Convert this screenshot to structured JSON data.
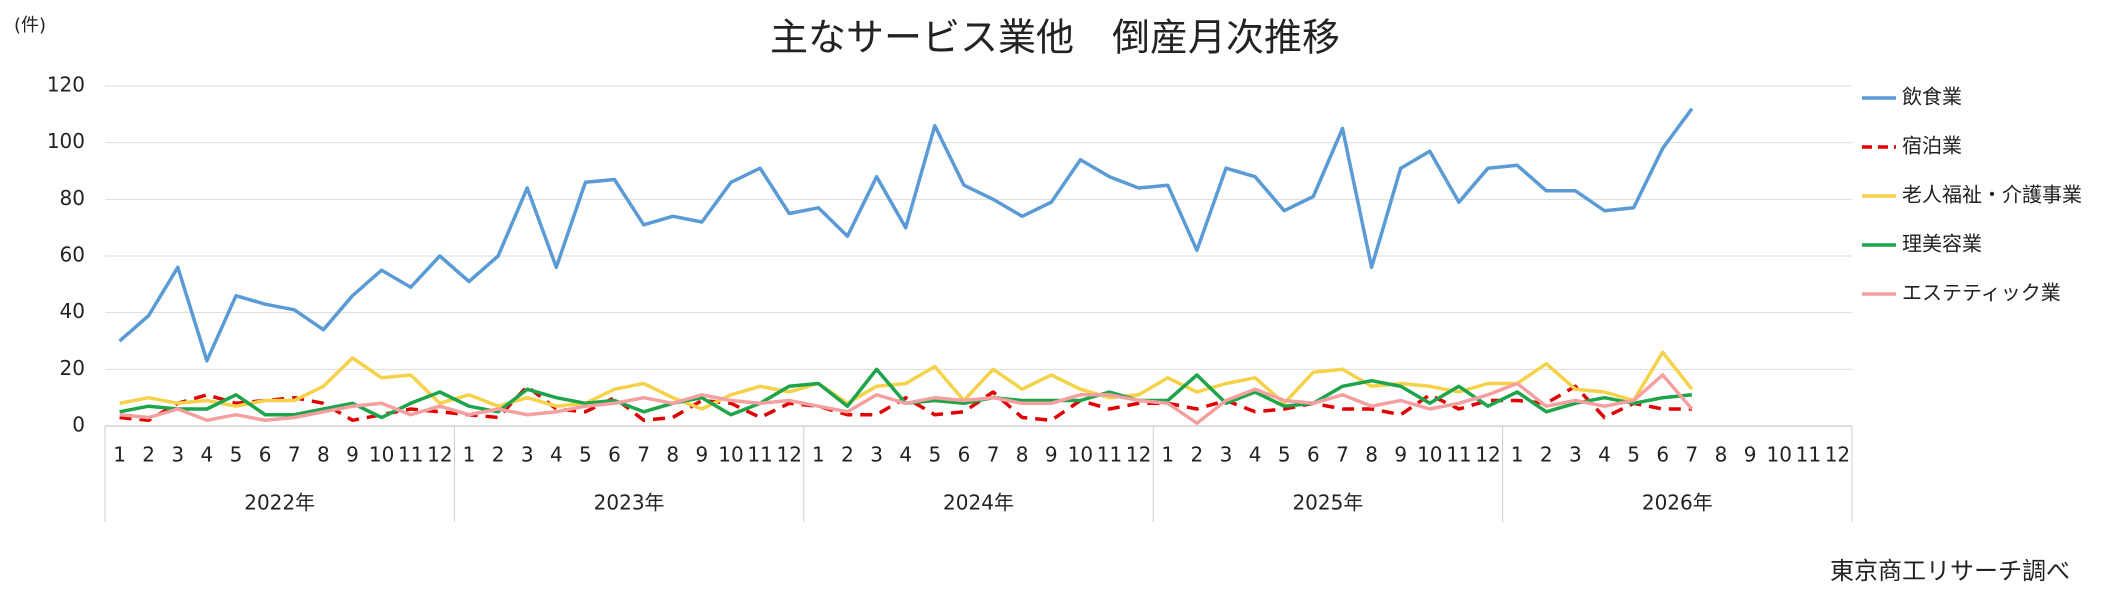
{
  "chart_data": {
    "type": "line",
    "title": "主なサービス業他　倒産月次推移",
    "unit_label": "(件)",
    "source": "東京商工リサーチ調べ",
    "categories": [
      "1",
      "2",
      "3",
      "4",
      "5",
      "6",
      "7",
      "8",
      "9",
      "10",
      "11",
      "12",
      "1",
      "2",
      "3",
      "4",
      "5",
      "6",
      "7",
      "8",
      "9",
      "10",
      "11",
      "12",
      "1",
      "2",
      "3",
      "4",
      "5",
      "6",
      "7",
      "8",
      "9",
      "10",
      "11",
      "12",
      "1",
      "2",
      "3",
      "4",
      "5",
      "6",
      "7",
      "8",
      "9",
      "10",
      "11",
      "12",
      "1",
      "2",
      "3",
      "4",
      "5",
      "6",
      "7",
      "8",
      "9",
      "10",
      "11",
      "12"
    ],
    "years": [
      "2022年",
      "2023年",
      "2024年",
      "2025年",
      "2026年"
    ],
    "ylim": [
      0,
      120
    ],
    "yticks": [
      0,
      20,
      40,
      60,
      80,
      100,
      120
    ],
    "grid": true,
    "series": [
      {
        "name": "飲食業",
        "color": "#5b9bd5",
        "dashed": false,
        "values": [
          30,
          39,
          56,
          23,
          46,
          43,
          41,
          34,
          46,
          55,
          49,
          60,
          51,
          60,
          84,
          56,
          86,
          87,
          71,
          74,
          72,
          86,
          91,
          75,
          77,
          67,
          88,
          70,
          106,
          85,
          80,
          74,
          79,
          94,
          88,
          84,
          85,
          62,
          91,
          88,
          76,
          81,
          105,
          56,
          91,
          97,
          79,
          91,
          92,
          83,
          83,
          76,
          77,
          98,
          112,
          null,
          null,
          null,
          null,
          null
        ]
      },
      {
        "name": "宿泊業",
        "color": "#e00000",
        "dashed": true,
        "values": [
          3,
          2,
          8,
          11,
          8,
          9,
          10,
          8,
          2,
          4,
          6,
          5,
          4,
          3,
          14,
          6,
          5,
          10,
          2,
          3,
          9,
          8,
          3,
          8,
          7,
          4,
          4,
          10,
          4,
          5,
          12,
          3,
          2,
          9,
          6,
          8,
          8,
          6,
          9,
          5,
          6,
          8,
          6,
          6,
          4,
          11,
          6,
          9,
          9,
          8,
          14,
          3,
          8,
          6,
          6,
          null,
          null,
          null,
          null,
          null
        ]
      },
      {
        "name": "老人福祉・介護事業",
        "color": "#f5d24a",
        "dashed": false,
        "values": [
          8,
          10,
          8,
          9,
          7,
          9,
          9,
          14,
          24,
          17,
          18,
          8,
          11,
          7,
          10,
          7,
          8,
          13,
          15,
          10,
          6,
          11,
          14,
          12,
          15,
          8,
          14,
          15,
          21,
          9,
          20,
          13,
          18,
          13,
          10,
          11,
          17,
          12,
          15,
          17,
          8,
          19,
          20,
          14,
          15,
          14,
          12,
          15,
          15,
          22,
          13,
          12,
          9,
          26,
          13,
          null,
          null,
          null,
          null,
          null
        ]
      },
      {
        "name": "理美容業",
        "color": "#1ea44a",
        "dashed": false,
        "values": [
          5,
          7,
          6,
          6,
          11,
          4,
          4,
          6,
          8,
          3,
          8,
          12,
          7,
          5,
          13,
          10,
          8,
          9,
          5,
          8,
          10,
          4,
          8,
          14,
          15,
          7,
          20,
          8,
          9,
          8,
          10,
          9,
          9,
          9,
          12,
          9,
          9,
          18,
          8,
          12,
          7,
          8,
          14,
          16,
          14,
          8,
          14,
          7,
          12,
          5,
          8,
          10,
          8,
          10,
          11,
          null,
          null,
          null,
          null,
          null
        ]
      },
      {
        "name": "エステティック業",
        "color": "#f4a0a0",
        "dashed": false,
        "values": [
          4,
          3,
          6,
          2,
          4,
          2,
          3,
          5,
          7,
          8,
          4,
          7,
          4,
          6,
          4,
          5,
          7,
          8,
          10,
          8,
          11,
          9,
          8,
          9,
          7,
          5,
          11,
          8,
          10,
          9,
          10,
          8,
          8,
          11,
          11,
          9,
          8,
          1,
          9,
          13,
          9,
          8,
          11,
          7,
          9,
          6,
          8,
          11,
          15,
          7,
          9,
          7,
          9,
          18,
          6,
          null,
          null,
          null,
          null,
          null
        ]
      }
    ]
  }
}
